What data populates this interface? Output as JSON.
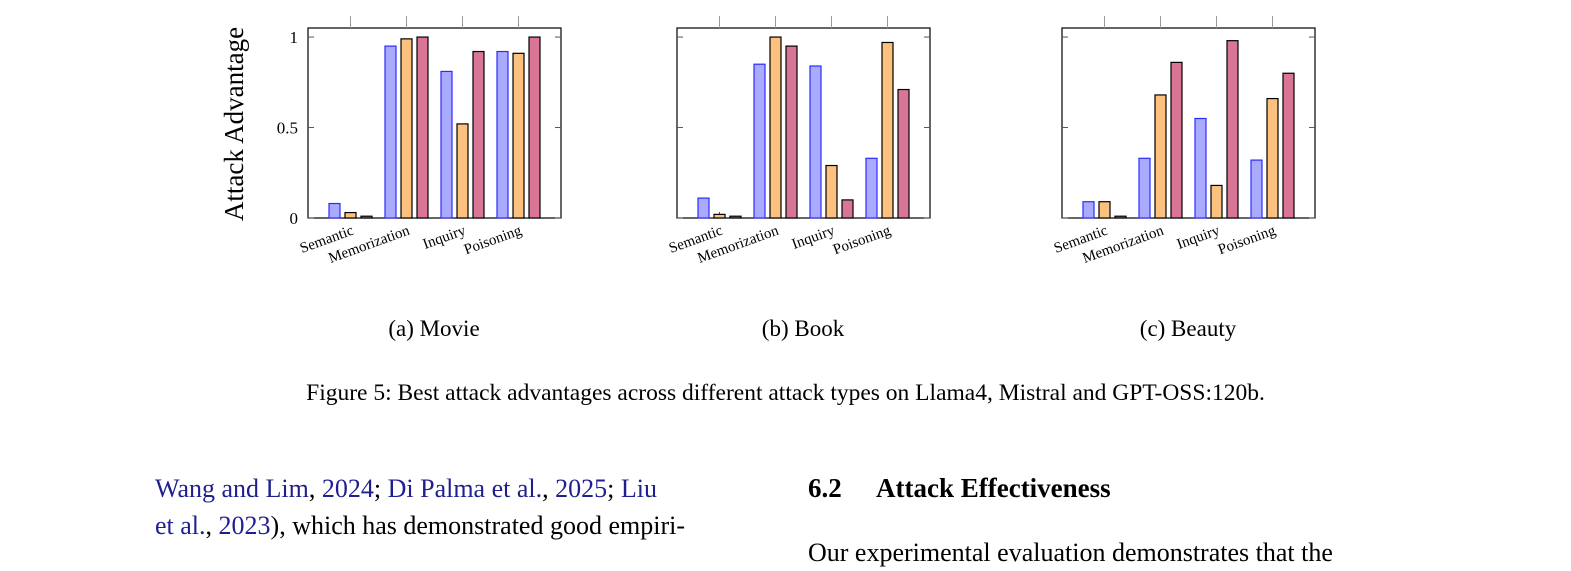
{
  "chart_data": [
    {
      "type": "bar",
      "subcaption": "(a) Movie",
      "ylabel": "Attack Advantage",
      "ylim": [
        0,
        1.05
      ],
      "yticks": [
        "0",
        "0.5",
        "1"
      ],
      "categories": [
        "Semantic",
        "Memorization",
        "Inquiry",
        "Poisoning"
      ],
      "series": [
        {
          "values": [
            0.08,
            0.95,
            0.81,
            0.92
          ]
        },
        {
          "values": [
            0.03,
            0.99,
            0.52,
            0.91
          ]
        },
        {
          "values": [
            0.01,
            1.0,
            0.92,
            1.0
          ]
        }
      ]
    },
    {
      "type": "bar",
      "subcaption": "(b) Book",
      "ylim": [
        0,
        1.05
      ],
      "categories": [
        "Semantic",
        "Memorization",
        "Inquiry",
        "Poisoning"
      ],
      "series": [
        {
          "values": [
            0.11,
            0.85,
            0.84,
            0.33
          ]
        },
        {
          "values": [
            0.02,
            1.0,
            0.29,
            0.97
          ]
        },
        {
          "values": [
            0.01,
            0.95,
            0.1,
            0.71
          ]
        }
      ]
    },
    {
      "type": "bar",
      "subcaption": "(c) Beauty",
      "ylim": [
        0,
        1.05
      ],
      "categories": [
        "Semantic",
        "Memorization",
        "Inquiry",
        "Poisoning"
      ],
      "series": [
        {
          "values": [
            0.09,
            0.33,
            0.55,
            0.32
          ]
        },
        {
          "values": [
            0.09,
            0.68,
            0.18,
            0.66
          ]
        },
        {
          "values": [
            0.01,
            0.86,
            0.98,
            0.8
          ]
        }
      ]
    }
  ],
  "series_colors": {
    "fill": [
      "#aaaaff",
      "#fcc07f",
      "#d97695"
    ],
    "stroke": [
      "#2b2bff",
      "#000000",
      "#000000"
    ]
  },
  "figure_caption": "Figure 5: Best attack advantages across different attack types on Llama4, Mistral and GPT-OSS:120b.",
  "body": {
    "cite1": "Wang and Lim",
    "cite1_year": "2024",
    "cite2": "Di Palma et al.",
    "cite2_year": "2025",
    "cite3a": "Liu",
    "cite3b": "et al.",
    "cite3_year": "2023",
    "line2_rest": "), which has demonstrated good empiri-",
    "section_number": "6.2",
    "section_title": "Attack Effectiveness",
    "right_line": "Our experimental evaluation demonstrates that the"
  }
}
